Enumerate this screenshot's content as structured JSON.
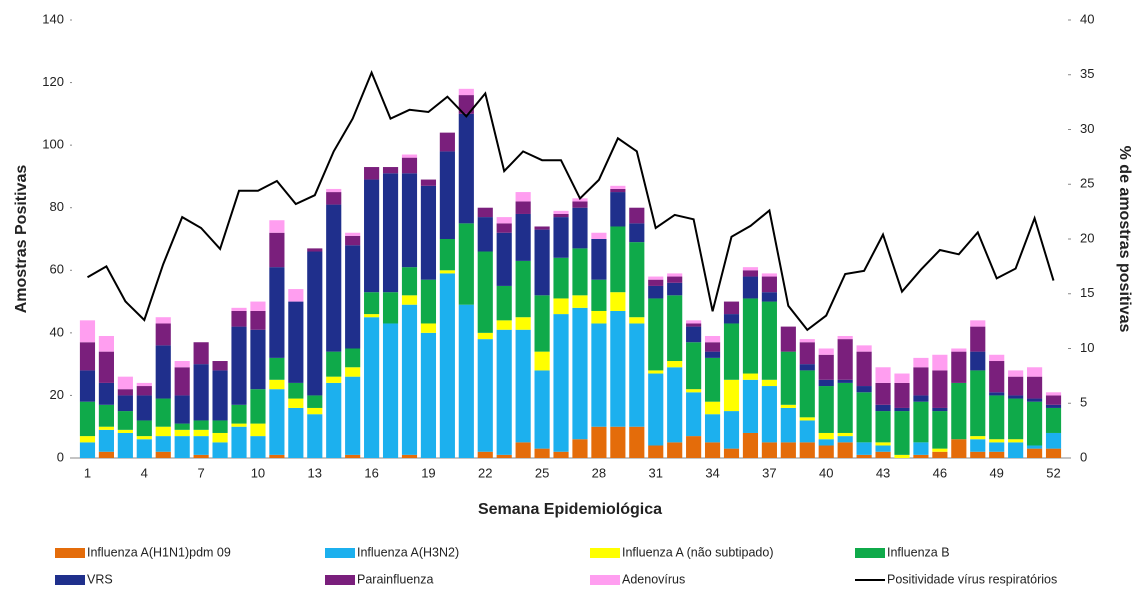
{
  "chart_data": {
    "type": "bar",
    "stacked": true,
    "x_label": "Semana Epidemiológica",
    "y_label": "Amostras Positivas",
    "y2_label": "% de amostras positivas",
    "categories": [
      1,
      null,
      null,
      4,
      null,
      null,
      7,
      null,
      null,
      10,
      null,
      null,
      13,
      null,
      null,
      16,
      null,
      null,
      19,
      null,
      null,
      22,
      null,
      null,
      25,
      null,
      null,
      28,
      null,
      null,
      31,
      null,
      null,
      34,
      null,
      null,
      37,
      null,
      null,
      40,
      null,
      null,
      43,
      null,
      null,
      46,
      null,
      null,
      49,
      null,
      null,
      52
    ],
    "ylim": [
      0,
      140
    ],
    "yticks": [
      0,
      20,
      40,
      60,
      80,
      100,
      120,
      140
    ],
    "y2lim": [
      0,
      40
    ],
    "y2ticks": [
      0,
      5,
      10,
      15,
      20,
      25,
      30,
      35,
      40
    ],
    "series": [
      {
        "name": "Influenza A(H1N1)pdm 09",
        "color": "#e46c0a",
        "values": [
          0,
          2,
          0,
          0,
          2,
          0,
          1,
          0,
          0,
          0,
          1,
          0,
          0,
          0,
          1,
          0,
          0,
          1,
          0,
          0,
          0,
          2,
          1,
          5,
          3,
          2,
          6,
          10,
          10,
          10,
          4,
          5,
          7,
          5,
          3,
          8,
          5,
          5,
          5,
          4,
          5,
          1,
          2,
          0,
          1,
          2,
          6,
          2,
          2,
          0,
          3,
          3
        ]
      },
      {
        "name": "Influenza A(H3N2)",
        "color": "#1cb0ee",
        "values": [
          5,
          7,
          8,
          6,
          5,
          7,
          6,
          5,
          10,
          7,
          21,
          16,
          14,
          24,
          25,
          45,
          43,
          48,
          40,
          59,
          49,
          36,
          40,
          36,
          25,
          44,
          42,
          33,
          37,
          33,
          23,
          24,
          14,
          9,
          12,
          17,
          18,
          11,
          7,
          2,
          2,
          4,
          2,
          0,
          4,
          0,
          0,
          4,
          3,
          5,
          1,
          5
        ]
      },
      {
        "name": "Influenza A (não subtipado)",
        "color": "#ffff00",
        "values": [
          2,
          1,
          1,
          1,
          3,
          2,
          2,
          3,
          1,
          4,
          3,
          3,
          2,
          2,
          3,
          1,
          0,
          3,
          3,
          1,
          0,
          2,
          3,
          4,
          6,
          5,
          4,
          4,
          6,
          2,
          1,
          2,
          1,
          4,
          10,
          2,
          2,
          1,
          1,
          2,
          1,
          0,
          1,
          1,
          0,
          1,
          0,
          1,
          1,
          1,
          0,
          0
        ]
      },
      {
        "name": "Influenza B",
        "color": "#0faa4a",
        "values": [
          11,
          7,
          6,
          5,
          9,
          2,
          3,
          4,
          6,
          11,
          7,
          5,
          4,
          8,
          6,
          7,
          10,
          9,
          14,
          10,
          26,
          26,
          11,
          18,
          18,
          13,
          15,
          10,
          21,
          24,
          23,
          21,
          15,
          14,
          18,
          24,
          25,
          17,
          15,
          15,
          16,
          16,
          10,
          14,
          13,
          12,
          18,
          21,
          14,
          13,
          14,
          8
        ]
      },
      {
        "name": "VRS",
        "color": "#1f2f8c",
        "values": [
          10,
          7,
          5,
          8,
          17,
          9,
          18,
          16,
          25,
          19,
          29,
          26,
          46,
          47,
          33,
          36,
          38,
          30,
          30,
          28,
          35,
          11,
          17,
          15,
          21,
          13,
          13,
          13,
          11,
          6,
          4,
          4,
          5,
          2,
          3,
          7,
          3,
          0,
          2,
          2,
          1,
          2,
          2,
          1,
          2,
          1,
          0,
          6,
          1,
          1,
          1,
          1
        ]
      },
      {
        "name": "Parainfluenza",
        "color": "#7a1f7c",
        "values": [
          9,
          10,
          2,
          3,
          7,
          9,
          7,
          3,
          5,
          6,
          11,
          0,
          1,
          4,
          3,
          4,
          2,
          5,
          2,
          6,
          6,
          3,
          3,
          4,
          1,
          1,
          2,
          0,
          1,
          5,
          2,
          2,
          1,
          3,
          4,
          2,
          5,
          8,
          7,
          8,
          13,
          11,
          7,
          8,
          9,
          12,
          10,
          8,
          10,
          6,
          7,
          3
        ]
      },
      {
        "name": "Adenovírus",
        "color": "#ff9ef0",
        "values": [
          7,
          5,
          4,
          1,
          2,
          2,
          0,
          0,
          1,
          3,
          4,
          4,
          0,
          1,
          1,
          0,
          0,
          1,
          0,
          0,
          2,
          0,
          2,
          3,
          0,
          1,
          1,
          2,
          1,
          0,
          1,
          1,
          1,
          2,
          0,
          1,
          1,
          0,
          1,
          2,
          1,
          2,
          5,
          3,
          3,
          5,
          1,
          2,
          2,
          2,
          3,
          1
        ]
      },
      {
        "name": "Positividade vírus respiratórios",
        "type": "line",
        "axis": "y2",
        "color": "#000000",
        "values": [
          16.5,
          17.5,
          14.3,
          12.6,
          17.7,
          22,
          21,
          19.1,
          24.4,
          24.4,
          25.3,
          23.2,
          24,
          28,
          31,
          35.2,
          31,
          31.8,
          31.6,
          33,
          31.2,
          33.3,
          26.2,
          28,
          27.2,
          27.2,
          23.7,
          25.4,
          29.2,
          28,
          21,
          22.2,
          21.8,
          13.4,
          20.2,
          21.2,
          22.6,
          13.9,
          11.7,
          13,
          16.8,
          17.1,
          20.4,
          15.2,
          17.2,
          19,
          18.6,
          20.6,
          16.4,
          17.3,
          21.9,
          16.2
        ]
      }
    ]
  }
}
